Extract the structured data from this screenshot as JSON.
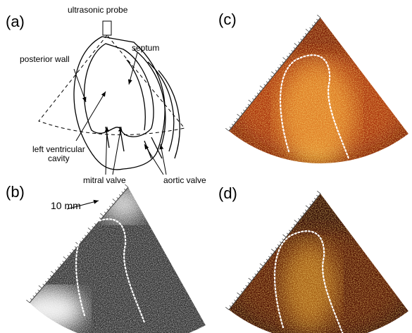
{
  "panel_a": {
    "label": "(a)",
    "probe": "ultrasonic probe",
    "posterior_wall": "posterior wall",
    "septum": "septum",
    "cavity": [
      "left ventricular",
      "cavity"
    ],
    "mitral_valve": "mitral valve",
    "aortic_valve": "aortic valve"
  },
  "panel_b": {
    "label": "(b)",
    "scale": "10 mm"
  },
  "panel_c": {
    "label": "(c)"
  },
  "panel_d": {
    "label": "(d)"
  }
}
